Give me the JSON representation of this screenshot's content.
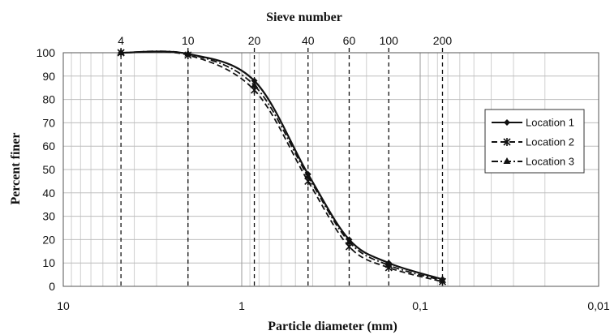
{
  "chart_data": {
    "type": "line",
    "title": "Sieve number",
    "xlabel": "Particle diameter (mm)",
    "ylabel": "Percent finer",
    "x_scale": "log",
    "x_reversed": true,
    "xlim": [
      10,
      0.01
    ],
    "ylim": [
      0,
      100
    ],
    "x_tick_labels": [
      "10",
      "1",
      "0,1",
      "0,01"
    ],
    "x_tick_values": [
      10,
      1,
      0.1,
      0.01
    ],
    "y_ticks": [
      0,
      10,
      20,
      30,
      40,
      50,
      60,
      70,
      80,
      90,
      100
    ],
    "grid": true,
    "legend_position": "right",
    "sieves": [
      {
        "label": "4",
        "size": 4.75
      },
      {
        "label": "10",
        "size": 2.0
      },
      {
        "label": "20",
        "size": 0.85
      },
      {
        "label": "40",
        "size": 0.425
      },
      {
        "label": "60",
        "size": 0.25
      },
      {
        "label": "100",
        "size": 0.15
      },
      {
        "label": "200",
        "size": 0.075
      }
    ],
    "x": [
      4.75,
      2.0,
      0.85,
      0.425,
      0.25,
      0.15,
      0.075
    ],
    "series": [
      {
        "name": "Location 1",
        "line": "solid",
        "marker": "diamond",
        "values": [
          100,
          99.5,
          88,
          48,
          20,
          10,
          3
        ]
      },
      {
        "name": "Location 2",
        "line": "dashed",
        "marker": "x",
        "values": [
          100,
          99,
          84,
          45,
          17,
          8,
          2
        ]
      },
      {
        "name": "Location 3",
        "line": "dashdot",
        "marker": "triangle",
        "values": [
          100,
          99.5,
          86,
          47,
          19,
          9,
          2.5
        ]
      }
    ]
  }
}
